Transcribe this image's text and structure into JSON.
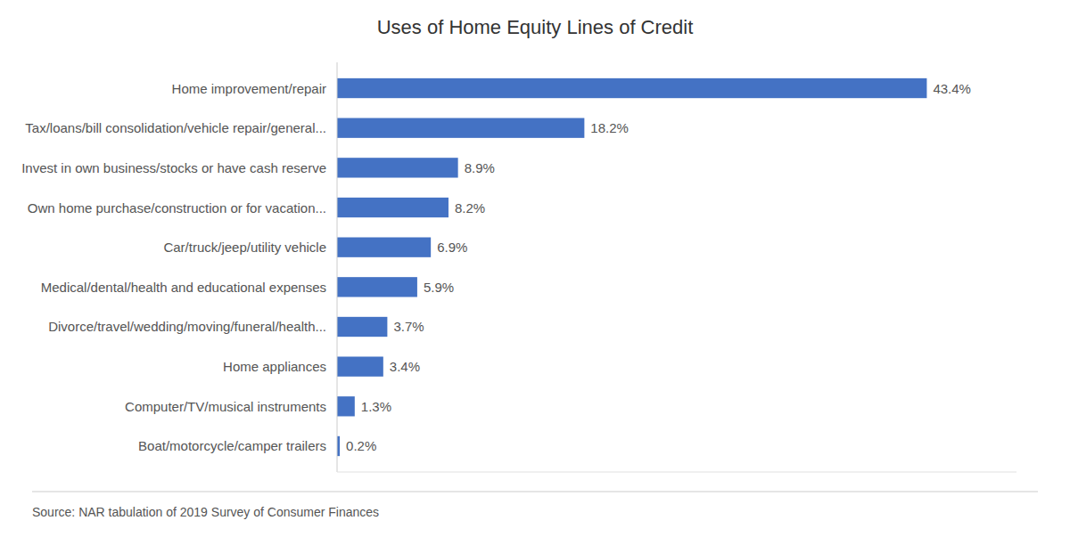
{
  "chart_data": {
    "type": "bar",
    "orientation": "horizontal",
    "title": "Uses of Home Equity Lines of Credit",
    "categories": [
      "Boat/motorcycle/camper trailers",
      "Computer/TV/musical instruments",
      "Home appliances",
      "Divorce/travel/wedding/moving/funeral/health...",
      "Medical/dental/health and educational expenses",
      "Car/truck/jeep/utility vehicle",
      "Own home purchase/construction or for vacation...",
      "Invest in own business/stocks or have cash reserve",
      "Tax/loans/bill consolidation/vehicle repair/general...",
      "Home improvement/repair"
    ],
    "values": [
      0.2,
      1.3,
      3.4,
      3.7,
      5.9,
      6.9,
      8.2,
      8.9,
      18.2,
      43.4
    ],
    "value_labels": [
      "0.2%",
      "1.3%",
      "3.4%",
      "3.7%",
      "5.9%",
      "6.9%",
      "8.2%",
      "8.9%",
      "18.2%",
      "43.4%"
    ],
    "data_labels": true,
    "color": "#4472C4",
    "xlim": [
      0,
      50
    ],
    "grid": false,
    "tick_labels": "y",
    "annotations": [
      "Source: NAR tabulation of 2019 Survey of Consumer Finances"
    ]
  }
}
